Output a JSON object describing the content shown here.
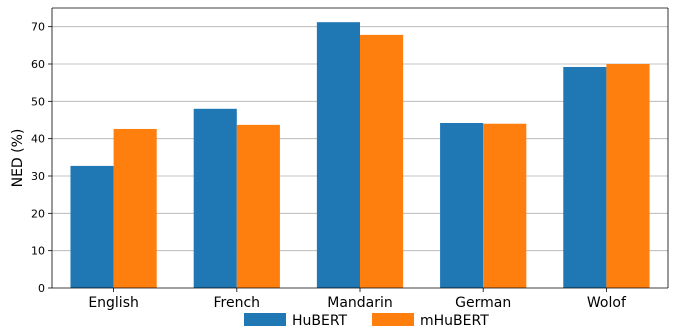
{
  "chart_data": {
    "type": "bar",
    "title": "",
    "xlabel": "",
    "ylabel": "NED (%)",
    "categories": [
      "English",
      "French",
      "Mandarin",
      "German",
      "Wolof"
    ],
    "series": [
      {
        "name": "HuBERT",
        "color": "#1f77b4",
        "values": [
          32.7,
          48.0,
          71.2,
          44.2,
          59.2
        ]
      },
      {
        "name": "mHuBERT",
        "color": "#ff7f0e",
        "values": [
          42.6,
          43.7,
          67.8,
          44.0,
          60.0
        ]
      }
    ],
    "ylim": [
      0,
      75
    ],
    "yticks": [
      0,
      10,
      20,
      30,
      40,
      50,
      60,
      70
    ],
    "grid": "horizontal",
    "legend_position": "bottom-center"
  }
}
